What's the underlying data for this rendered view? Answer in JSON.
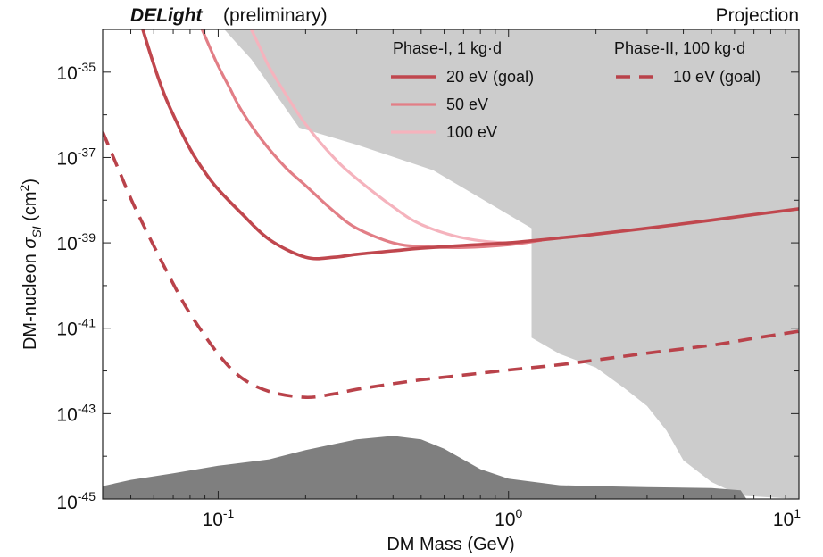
{
  "header": {
    "experiment": "DELight",
    "status": "(preliminary)",
    "right_label": "Projection"
  },
  "chart_data": {
    "type": "line",
    "xlabel": "DM Mass (GeV)",
    "ylabel_parts": [
      "DM-nucleon ",
      "σ",
      "SI",
      " (cm",
      "2",
      ")"
    ],
    "x_scale": "log",
    "y_scale": "log",
    "xlim": [
      0.04,
      10
    ],
    "ylim": [
      1e-45,
      1e-34
    ],
    "x_ticks": [
      {
        "value": 0.1,
        "base": "10",
        "exp": "-1"
      },
      {
        "value": 1,
        "base": "10",
        "exp": "0"
      },
      {
        "value": 10,
        "base": "10",
        "exp": "1"
      }
    ],
    "y_ticks": [
      {
        "value": 1e-35,
        "base": "10",
        "exp": "-35"
      },
      {
        "value": 1e-37,
        "base": "10",
        "exp": "-37"
      },
      {
        "value": 1e-39,
        "base": "10",
        "exp": "-39"
      },
      {
        "value": 1e-41,
        "base": "10",
        "exp": "-41"
      },
      {
        "value": 1e-43,
        "base": "10",
        "exp": "-43"
      },
      {
        "value": 1e-45,
        "base": "10",
        "exp": "-45"
      }
    ],
    "legend": {
      "phase1_title": "Phase-I, 1 kg·d",
      "phase2_title": "Phase-II, 100 kg·d"
    },
    "series": [
      {
        "name": "20 eV (goal)",
        "group": "phase1",
        "color": "#c0474e",
        "dash": false,
        "width": 3.6,
        "x": [
          0.055,
          0.06,
          0.065,
          0.07,
          0.08,
          0.09,
          0.1,
          0.12,
          0.15,
          0.2,
          0.25,
          0.3,
          0.4,
          0.5,
          0.7,
          1.0,
          1.5,
          2.0,
          3.0,
          5.0,
          7.0,
          10.0
        ],
        "y": [
          1e-34,
          1.5e-35,
          3.2e-36,
          1e-36,
          1.6e-37,
          4.5e-38,
          1.8e-38,
          5e-39,
          1.2e-39,
          4.6e-40,
          4.6e-40,
          5.4e-40,
          6.5e-40,
          7.5e-40,
          8.7e-40,
          1e-39,
          1.3e-39,
          1.6e-39,
          2.2e-39,
          3.4e-39,
          4.6e-39,
          6.3e-39
        ]
      },
      {
        "name": "50 eV",
        "group": "phase1",
        "color": "#e27e86",
        "dash": false,
        "width": 3.2,
        "x": [
          0.088,
          0.095,
          0.1,
          0.11,
          0.12,
          0.14,
          0.17,
          0.2,
          0.25,
          0.3,
          0.4,
          0.5,
          0.7,
          1.0,
          1.3
        ],
        "y": [
          1e-34,
          3e-35,
          1.4e-35,
          4e-36,
          1.3e-36,
          2.8e-37,
          6e-38,
          2.2e-38,
          5.5e-39,
          2.2e-39,
          1e-39,
          8.2e-40,
          7.8e-40,
          9e-40,
          1.15e-39
        ]
      },
      {
        "name": "100 eV",
        "group": "phase1",
        "color": "#f5b3bd",
        "dash": false,
        "width": 3.2,
        "x": [
          0.13,
          0.14,
          0.15,
          0.17,
          0.2,
          0.25,
          0.3,
          0.4,
          0.5,
          0.7,
          1.0,
          1.3
        ],
        "y": [
          1e-34,
          3.5e-35,
          1.3e-35,
          3.2e-36,
          6e-37,
          1e-37,
          3.2e-38,
          7e-39,
          2.7e-39,
          1.3e-39,
          1e-39,
          1.15e-39
        ]
      },
      {
        "name": "10 eV (goal)",
        "group": "phase2",
        "color": "#b9424a",
        "dash": true,
        "width": 3.6,
        "x": [
          0.04,
          0.045,
          0.05,
          0.055,
          0.06,
          0.07,
          0.08,
          0.1,
          0.12,
          0.15,
          0.2,
          0.25,
          0.3,
          0.4,
          0.5,
          0.7,
          1.0,
          1.5,
          2.0,
          3.0,
          5.0,
          7.0,
          10.0
        ],
        "y": [
          4e-37,
          6e-38,
          1.1e-38,
          2.8e-39,
          8.5e-40,
          1.1e-40,
          2.2e-41,
          2.5e-42,
          7e-43,
          3.3e-43,
          2.4e-43,
          2.9e-43,
          3.7e-43,
          5e-43,
          6.2e-43,
          8e-43,
          1.05e-42,
          1.4e-42,
          1.8e-42,
          2.6e-42,
          4e-42,
          5.8e-42,
          8.5e-42
        ]
      }
    ],
    "regions": [
      {
        "name": "excluded-region",
        "color": "#cccccc",
        "points": [
          [
            0.105,
            1e-34
          ],
          [
            0.115,
            5e-35
          ],
          [
            0.13,
            2e-35
          ],
          [
            0.15,
            5e-36
          ],
          [
            0.19,
            5e-37
          ],
          [
            0.3,
            2e-37
          ],
          [
            0.55,
            5e-38
          ],
          [
            1.2,
            2.2e-39
          ],
          [
            1.2,
            6e-42
          ],
          [
            1.5,
            2.5e-42
          ],
          [
            2.0,
            1.2e-42
          ],
          [
            2.5,
            4e-43
          ],
          [
            3.0,
            1.5e-43
          ],
          [
            3.5,
            4e-44
          ],
          [
            4.0,
            8e-45
          ],
          [
            5.0,
            2.5e-45
          ],
          [
            6.3,
            1.2e-45
          ],
          [
            10,
            1e-45
          ],
          [
            10,
            1e-34
          ]
        ]
      },
      {
        "name": "neutrino-fog",
        "color": "#7f7f7f",
        "points": [
          [
            0.04,
            1e-45
          ],
          [
            0.04,
            2e-45
          ],
          [
            0.05,
            2.8e-45
          ],
          [
            0.07,
            4e-45
          ],
          [
            0.1,
            6e-45
          ],
          [
            0.15,
            8.5e-45
          ],
          [
            0.2,
            1.4e-44
          ],
          [
            0.3,
            2.5e-44
          ],
          [
            0.4,
            3e-44
          ],
          [
            0.5,
            2.5e-44
          ],
          [
            0.6,
            1.5e-44
          ],
          [
            0.8,
            5e-45
          ],
          [
            1.0,
            3e-45
          ],
          [
            1.5,
            2.1e-45
          ],
          [
            2.0,
            2e-45
          ],
          [
            3.0,
            1.9e-45
          ],
          [
            5.0,
            1.8e-45
          ],
          [
            6.3,
            1.6e-45
          ],
          [
            6.6,
            1e-45
          ]
        ]
      }
    ]
  }
}
